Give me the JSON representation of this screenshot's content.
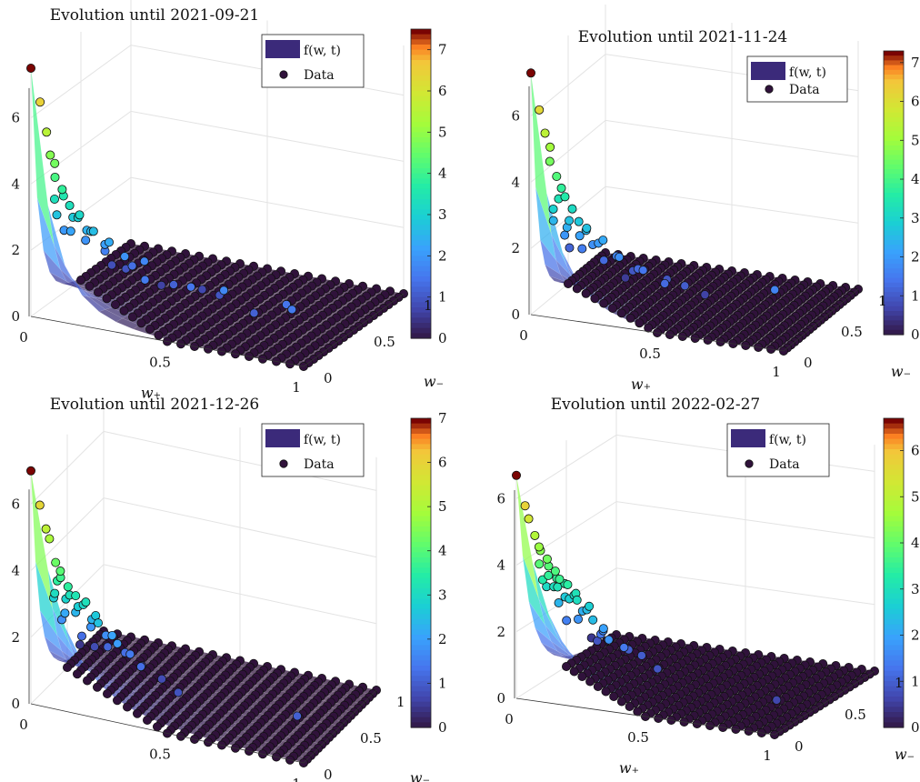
{
  "chart_data": [
    {
      "type": "surface3d",
      "title": "Evolution until 2021-09-21",
      "xlabel": "w₊",
      "ylabel": "w₋",
      "x_ticks": [
        "0",
        "0.5",
        "1"
      ],
      "y_ticks": [
        "0",
        "0.5",
        "1"
      ],
      "z_ticks": [
        "0",
        "2",
        "4",
        "6"
      ],
      "zlim": [
        0,
        7.5
      ],
      "colorbar": {
        "ticks": [
          "0",
          "1",
          "2",
          "3",
          "4",
          "5",
          "6",
          "7"
        ],
        "max": 7.5
      },
      "legend": [
        "f(w, t)",
        "Data"
      ],
      "peak": 7.5,
      "surface_spread": 0.06,
      "points": [
        [
          0,
          0,
          7.5
        ],
        [
          0.03,
          0.01,
          6.5
        ],
        [
          0.05,
          0.02,
          5.6
        ],
        [
          0.06,
          0.03,
          4.9
        ],
        [
          0.08,
          0.02,
          4.7
        ],
        [
          0.07,
          0.05,
          4.2
        ],
        [
          0.1,
          0.04,
          3.9
        ],
        [
          0.09,
          0.08,
          3.6
        ],
        [
          0.12,
          0.06,
          3.4
        ],
        [
          0.14,
          0.09,
          3.0
        ],
        [
          0.11,
          0.12,
          2.9
        ],
        [
          0.16,
          0.05,
          3.2
        ],
        [
          0.18,
          0.11,
          2.6
        ],
        [
          0.2,
          0.08,
          2.7
        ],
        [
          0.05,
          0.1,
          3.4
        ],
        [
          0.04,
          0.15,
          2.8
        ],
        [
          0.15,
          0.15,
          2.5
        ],
        [
          0.22,
          0.14,
          2.2
        ],
        [
          0.25,
          0.1,
          2.4
        ],
        [
          0.08,
          0.18,
          2.3
        ],
        [
          0.12,
          0.22,
          2.0
        ],
        [
          0.3,
          0.12,
          2.0
        ],
        [
          0.35,
          0.18,
          1.8
        ],
        [
          0.18,
          0.25,
          1.7
        ],
        [
          0.03,
          0.25,
          2.1
        ],
        [
          0.28,
          0.25,
          1.4
        ],
        [
          0.4,
          0.05,
          1.6
        ],
        [
          0.45,
          0.2,
          1.2
        ],
        [
          0.22,
          0.35,
          1.0
        ],
        [
          0.55,
          0.1,
          1.5
        ],
        [
          0.6,
          0.25,
          1.0
        ],
        [
          0.5,
          0.35,
          0.8
        ],
        [
          0.7,
          0.02,
          1.8
        ],
        [
          0.8,
          0.05,
          1.2
        ],
        [
          0.9,
          0.1,
          1.5
        ],
        [
          0.95,
          0.02,
          1.6
        ],
        [
          0.35,
          0.35,
          0.7
        ],
        [
          0.15,
          0.4,
          0.9
        ]
      ]
    },
    {
      "type": "surface3d",
      "title": "Evolution until 2021-11-24",
      "xlabel": "w₊",
      "ylabel": "w₋",
      "x_ticks": [
        "0",
        "0.5",
        "1"
      ],
      "y_ticks": [
        "0",
        "0.5",
        "1"
      ],
      "z_ticks": [
        "0",
        "2",
        "4",
        "6"
      ],
      "zlim": [
        0,
        7.5
      ],
      "colorbar": {
        "ticks": [
          "0",
          "1",
          "2",
          "3",
          "4",
          "5",
          "6",
          "7"
        ],
        "max": 7.3
      },
      "legend": [
        "f(w, t)",
        "Data"
      ],
      "peak": 7.3,
      "surface_spread": 0.07,
      "points": [
        [
          0,
          0,
          7.3
        ],
        [
          0.03,
          0.01,
          6.2
        ],
        [
          0.05,
          0.02,
          5.5
        ],
        [
          0.07,
          0.02,
          5.1
        ],
        [
          0.06,
          0.05,
          4.6
        ],
        [
          0.09,
          0.04,
          4.2
        ],
        [
          0.1,
          0.07,
          3.8
        ],
        [
          0.12,
          0.05,
          3.6
        ],
        [
          0.14,
          0.08,
          3.2
        ],
        [
          0.08,
          0.1,
          3.4
        ],
        [
          0.05,
          0.13,
          3.0
        ],
        [
          0.16,
          0.1,
          2.8
        ],
        [
          0.11,
          0.14,
          2.7
        ],
        [
          0.18,
          0.13,
          2.5
        ],
        [
          0.2,
          0.07,
          2.7
        ],
        [
          0.09,
          0.18,
          2.4
        ],
        [
          0.14,
          0.18,
          2.2
        ],
        [
          0.22,
          0.16,
          2.1
        ],
        [
          0.03,
          0.2,
          2.5
        ],
        [
          0.25,
          0.12,
          2.3
        ],
        [
          0.06,
          0.25,
          2.0
        ],
        [
          0.18,
          0.22,
          1.9
        ],
        [
          0.28,
          0.2,
          1.7
        ],
        [
          0.12,
          0.28,
          1.6
        ],
        [
          0.32,
          0.1,
          1.9
        ],
        [
          0.35,
          0.25,
          1.3
        ],
        [
          0.2,
          0.3,
          1.3
        ],
        [
          0.4,
          0.15,
          1.5
        ],
        [
          0.45,
          0.3,
          1.0
        ],
        [
          0.3,
          0.35,
          1.0
        ],
        [
          0.02,
          0.45,
          1.2
        ],
        [
          0.5,
          0.1,
          1.3
        ],
        [
          0.55,
          0.2,
          1.1
        ],
        [
          0.95,
          0.05,
          1.7
        ],
        [
          0.6,
          0.3,
          0.7
        ],
        [
          0.25,
          0.42,
          0.6
        ]
      ]
    },
    {
      "type": "surface3d",
      "title": "Evolution until 2021-12-26",
      "xlabel": "w₊",
      "ylabel": "w₋",
      "x_ticks": [
        "0",
        "0.5",
        "1"
      ],
      "y_ticks": [
        "0",
        "0.5",
        "1"
      ],
      "z_ticks": [
        "0",
        "2",
        "4",
        "6"
      ],
      "zlim": [
        0,
        7.0
      ],
      "colorbar": {
        "ticks": [
          "0",
          "1",
          "2",
          "3",
          "4",
          "5",
          "6",
          "7"
        ],
        "max": 7.0
      },
      "legend": [
        "f(w, t)",
        "Data"
      ],
      "peak": 7.0,
      "surface_spread": 0.09,
      "points": [
        [
          0,
          0,
          7.0
        ],
        [
          0.03,
          0.01,
          6.0
        ],
        [
          0.05,
          0.02,
          5.3
        ],
        [
          0.06,
          0.03,
          5.0
        ],
        [
          0.08,
          0.04,
          4.3
        ],
        [
          0.1,
          0.03,
          4.1
        ],
        [
          0.09,
          0.07,
          3.8
        ],
        [
          0.12,
          0.06,
          3.6
        ],
        [
          0.07,
          0.1,
          3.6
        ],
        [
          0.14,
          0.09,
          3.3
        ],
        [
          0.11,
          0.12,
          3.2
        ],
        [
          0.05,
          0.14,
          3.1
        ],
        [
          0.16,
          0.12,
          3.0
        ],
        [
          0.18,
          0.08,
          3.2
        ],
        [
          0.13,
          0.16,
          2.8
        ],
        [
          0.2,
          0.14,
          2.7
        ],
        [
          0.08,
          0.18,
          2.9
        ],
        [
          0.03,
          0.2,
          2.8
        ],
        [
          0.22,
          0.1,
          2.6
        ],
        [
          0.17,
          0.2,
          2.4
        ],
        [
          0.1,
          0.24,
          2.4
        ],
        [
          0.25,
          0.18,
          2.1
        ],
        [
          0.05,
          0.28,
          2.2
        ],
        [
          0.28,
          0.14,
          2.0
        ],
        [
          0.2,
          0.28,
          1.8
        ],
        [
          0.14,
          0.3,
          1.9
        ],
        [
          0.3,
          0.24,
          1.5
        ],
        [
          0.02,
          0.35,
          1.8
        ],
        [
          0.26,
          0.32,
          1.3
        ],
        [
          0.35,
          0.2,
          1.3
        ],
        [
          0.08,
          0.4,
          1.3
        ],
        [
          0.18,
          0.38,
          1.2
        ],
        [
          0.4,
          0.3,
          0.8
        ],
        [
          0.3,
          0.4,
          0.8
        ],
        [
          0.1,
          0.5,
          0.8
        ],
        [
          0.02,
          0.6,
          0.5
        ],
        [
          0.5,
          0.15,
          0.9
        ],
        [
          0.95,
          0.1,
          1.1
        ]
      ]
    },
    {
      "type": "surface3d",
      "title": "Evolution until 2022-02-27",
      "xlabel": "w₊",
      "ylabel": "w₋",
      "x_ticks": [
        "0",
        "0.5",
        "1"
      ],
      "y_ticks": [
        "0",
        "0.5",
        "1"
      ],
      "z_ticks": [
        "0",
        "2",
        "4",
        "6"
      ],
      "zlim": [
        0,
        6.8
      ],
      "colorbar": {
        "ticks": [
          "0",
          "1",
          "2",
          "3",
          "4",
          "5",
          "6"
        ],
        "max": 6.7
      },
      "legend": [
        "f(w, t)",
        "Data"
      ],
      "peak": 6.7,
      "surface_spread": 0.1,
      "points": [
        [
          0,
          0,
          6.7
        ],
        [
          0.03,
          0.01,
          5.8
        ],
        [
          0.04,
          0.02,
          5.4
        ],
        [
          0.06,
          0.03,
          4.9
        ],
        [
          0.08,
          0.02,
          4.6
        ],
        [
          0.07,
          0.06,
          4.4
        ],
        [
          0.1,
          0.05,
          4.2
        ],
        [
          0.09,
          0.09,
          3.9
        ],
        [
          0.12,
          0.08,
          3.8
        ],
        [
          0.05,
          0.1,
          3.9
        ],
        [
          0.14,
          0.07,
          3.6
        ],
        [
          0.11,
          0.12,
          3.5
        ],
        [
          0.07,
          0.14,
          3.5
        ],
        [
          0.16,
          0.1,
          3.4
        ],
        [
          0.13,
          0.15,
          3.3
        ],
        [
          0.04,
          0.16,
          3.3
        ],
        [
          0.18,
          0.13,
          3.1
        ],
        [
          0.09,
          0.18,
          3.1
        ],
        [
          0.2,
          0.09,
          3.0
        ],
        [
          0.15,
          0.19,
          2.9
        ],
        [
          0.06,
          0.22,
          3.0
        ],
        [
          0.22,
          0.16,
          2.7
        ],
        [
          0.12,
          0.22,
          2.7
        ],
        [
          0.02,
          0.25,
          2.9
        ],
        [
          0.18,
          0.24,
          2.4
        ],
        [
          0.25,
          0.12,
          2.4
        ],
        [
          0.08,
          0.28,
          2.6
        ],
        [
          0.26,
          0.2,
          2.0
        ],
        [
          0.14,
          0.3,
          2.2
        ],
        [
          0.04,
          0.32,
          2.3
        ],
        [
          0.3,
          0.15,
          1.8
        ],
        [
          0.22,
          0.3,
          1.7
        ],
        [
          0.1,
          0.36,
          1.8
        ],
        [
          0.32,
          0.25,
          1.4
        ],
        [
          0.18,
          0.38,
          1.4
        ],
        [
          0.02,
          0.45,
          1.5
        ],
        [
          0.35,
          0.35,
          1.0
        ],
        [
          0.28,
          0.4,
          1.0
        ],
        [
          0.45,
          0.25,
          0.9
        ],
        [
          0.12,
          0.5,
          0.9
        ],
        [
          0.02,
          0.7,
          0.5
        ],
        [
          0.95,
          0.15,
          0.7
        ]
      ]
    }
  ]
}
